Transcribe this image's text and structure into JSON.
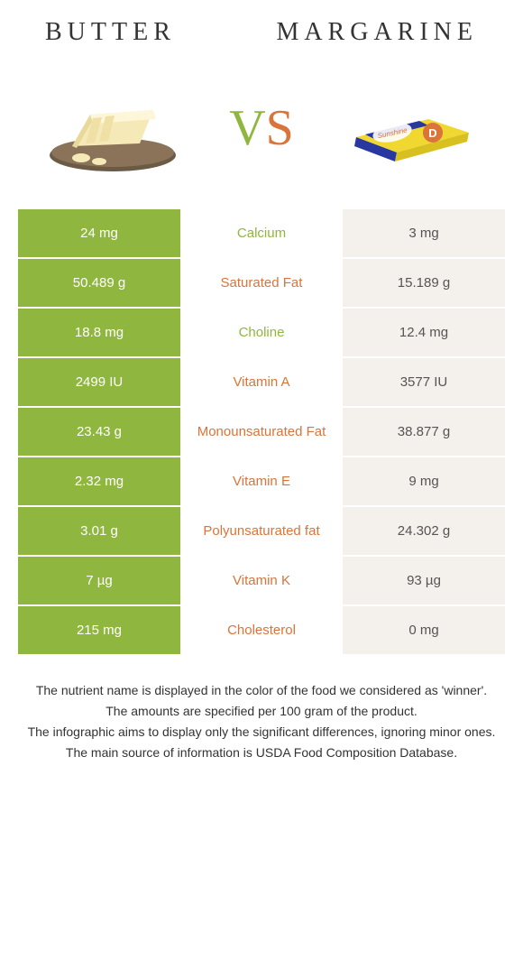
{
  "header": {
    "left_title": "Butter",
    "right_title": "Margarine",
    "vs_text": "VS"
  },
  "colors": {
    "green_bg": "#8fb63f",
    "green_text": "#8fb63f",
    "orange_text": "#d9743a",
    "beige_bg": "#f4f0ec",
    "vs_left": "#8fb63f",
    "vs_right": "#d9743a",
    "row_divider": "#ffffff"
  },
  "rows": [
    {
      "left": "24 mg",
      "label": "Calcium",
      "right": "3 mg",
      "winner": "left"
    },
    {
      "left": "50.489 g",
      "label": "Saturated Fat",
      "right": "15.189 g",
      "winner": "right"
    },
    {
      "left": "18.8 mg",
      "label": "Choline",
      "right": "12.4 mg",
      "winner": "left"
    },
    {
      "left": "2499 IU",
      "label": "Vitamin A",
      "right": "3577 IU",
      "winner": "right"
    },
    {
      "left": "23.43 g",
      "label": "Monounsaturated Fat",
      "right": "38.877 g",
      "winner": "right"
    },
    {
      "left": "2.32 mg",
      "label": "Vitamin E",
      "right": "9 mg",
      "winner": "right"
    },
    {
      "left": "3.01 g",
      "label": "Polyunsaturated fat",
      "right": "24.302 g",
      "winner": "right"
    },
    {
      "left": "7 µg",
      "label": "Vitamin K",
      "right": "93 µg",
      "winner": "right"
    },
    {
      "left": "215 mg",
      "label": "Cholesterol",
      "right": "0 mg",
      "winner": "right"
    }
  ],
  "notes": {
    "line1": "The nutrient name is displayed in the color of the food we considered as 'winner'.",
    "line2": "The amounts are specified per 100 gram of the product.",
    "line3": "The infographic aims to display only the significant differences, ignoring minor ones.",
    "line4": "The main source of information is USDA Food Composition Database."
  }
}
